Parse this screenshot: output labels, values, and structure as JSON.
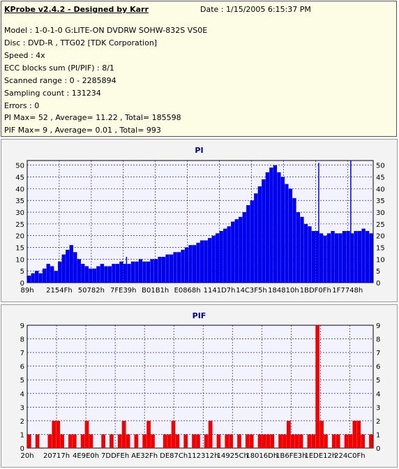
{
  "header": {
    "title": "KProbe v2.4.2 - Designed by Karr",
    "date": "Date : 1/15/2005 6:15:37 PM"
  },
  "info_lines": [
    "Model : 1-0-1-0 G:LITE-ON DVDRW SOHW-832S  VS0E",
    "Disc : DVD-R , TTG02 [TDK Corporation]",
    "Speed : 4x",
    "ECC blocks sum (PI/PIF) : 8/1",
    "Scanned range : 0 - 2285894",
    "Sampling count : 131234",
    "Errors : 0",
    "PI Max= 52 , Average= 11.22 , Total= 185598",
    "PIF Max= 9 , Average= 0.01 , Total= 993"
  ],
  "colors": {
    "pi_bars": "#0000ee",
    "pif_bars": "#ee0000",
    "plot_bg": "#f3f3ff",
    "grid": "#000080"
  },
  "chart_data": [
    {
      "type": "bar",
      "title": "PI",
      "xlabel": "",
      "ylabel": "",
      "ylim": [
        0,
        52
      ],
      "yticks": [
        0,
        5,
        10,
        15,
        20,
        25,
        30,
        35,
        40,
        45,
        50
      ],
      "xticks": [
        "89h",
        "2154Fh",
        "50782h",
        "7FE39h",
        "B01B1h",
        "E0868h",
        "1141D7h",
        "14C3F5h",
        "184810h",
        "1BDF0Fh",
        "1F7748h"
      ],
      "grid": true,
      "series": [
        {
          "name": "PI",
          "values": [
            3,
            4,
            5,
            4,
            6,
            8,
            7,
            5,
            9,
            12,
            14,
            16,
            13,
            10,
            8,
            7,
            6,
            6,
            7,
            8,
            7,
            7,
            8,
            8,
            9,
            8,
            8,
            9,
            9,
            10,
            9,
            9,
            10,
            10,
            11,
            11,
            12,
            12,
            13,
            13,
            14,
            15,
            16,
            16,
            17,
            18,
            18,
            19,
            20,
            21,
            22,
            23,
            24,
            26,
            27,
            28,
            30,
            33,
            35,
            38,
            41,
            44,
            47,
            49,
            50,
            47,
            45,
            42,
            40,
            36,
            30,
            28,
            25,
            24,
            22,
            22,
            21,
            20,
            21,
            22,
            21,
            21,
            22,
            22,
            21,
            22,
            22,
            23,
            22,
            21
          ]
        }
      ],
      "spikes": [
        {
          "x": "7FE39h",
          "value": 11
        },
        {
          "x": "1BDF0Fh",
          "value": 51
        },
        {
          "x": "1F7748h",
          "value": 52
        }
      ]
    },
    {
      "type": "bar",
      "title": "PIF",
      "xlabel": "",
      "ylabel": "",
      "ylim": [
        0,
        9
      ],
      "yticks": [
        0,
        1,
        2,
        3,
        4,
        5,
        6,
        7,
        8,
        9
      ],
      "xticks": [
        "20h",
        "20717h",
        "4E9E0h",
        "7DDFEh",
        "AE32Fh",
        "DE87Ch",
        "112312h",
        "14925Ch",
        "18016Dh",
        "1B6FE3h",
        "1EDE12h",
        "224C0Fh"
      ],
      "grid": true,
      "series": [
        {
          "name": "PIF",
          "values": [
            1,
            0,
            1,
            0,
            0,
            1,
            2,
            2,
            1,
            0,
            1,
            1,
            0,
            1,
            2,
            1,
            0,
            0,
            1,
            0,
            1,
            0,
            1,
            2,
            1,
            0,
            1,
            0,
            1,
            2,
            1,
            0,
            0,
            1,
            1,
            2,
            1,
            0,
            1,
            0,
            1,
            1,
            0,
            1,
            2,
            0,
            1,
            0,
            1,
            1,
            0,
            1,
            0,
            1,
            1,
            0,
            1,
            1,
            1,
            1,
            0,
            1,
            1,
            2,
            1,
            1,
            1,
            0,
            1,
            1,
            9,
            2,
            1,
            0,
            1,
            1,
            0,
            1,
            1,
            2,
            2,
            1,
            0,
            1
          ]
        }
      ]
    }
  ]
}
